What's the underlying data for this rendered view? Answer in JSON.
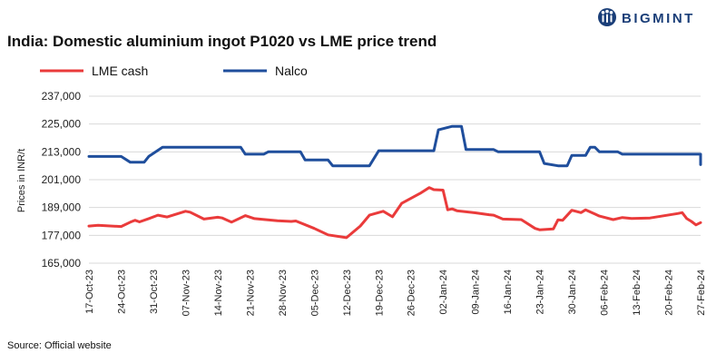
{
  "brand": {
    "name": "BIGMINT",
    "logo_icon": "bigmint-logo-icon",
    "color": "#1a3e78"
  },
  "footer": {
    "source": "Source: Official website"
  },
  "chart_data": {
    "type": "line",
    "title": "India: Domestic aluminium ingot P1020 vs LME price trend",
    "ylabel": "Prices in INR/t",
    "xlabel": "",
    "ylim": [
      165000,
      237000
    ],
    "yticks": [
      "165,000",
      "177,000",
      "189,000",
      "201,000",
      "213,000",
      "225,000",
      "237,000"
    ],
    "ytick_values": [
      165000,
      177000,
      189000,
      201000,
      213000,
      225000,
      237000
    ],
    "xlim": [
      "2023-10-17",
      "2024-02-27"
    ],
    "xticks": [
      "17-Oct-23",
      "24-Oct-23",
      "31-Oct-23",
      "07-Nov-23",
      "14-Nov-23",
      "21-Nov-23",
      "28-Nov-23",
      "05-Dec-23",
      "12-Dec-23",
      "19-Dec-23",
      "26-Dec-23",
      "02-Jan-24",
      "09-Jan-24",
      "16-Jan-24",
      "23-Jan-24",
      "30-Jan-24",
      "06-Feb-24",
      "13-Feb-24",
      "20-Feb-24",
      "27-Feb-24"
    ],
    "xtick_dates": [
      "2023-10-17",
      "2023-10-24",
      "2023-10-31",
      "2023-11-07",
      "2023-11-14",
      "2023-11-21",
      "2023-11-28",
      "2023-12-05",
      "2023-12-12",
      "2023-12-19",
      "2023-12-26",
      "2024-01-02",
      "2024-01-09",
      "2024-01-16",
      "2024-01-23",
      "2024-01-30",
      "2024-02-06",
      "2024-02-13",
      "2024-02-20",
      "2024-02-27"
    ],
    "grid": {
      "y": true,
      "x": false
    },
    "legend": "top-left",
    "series": [
      {
        "name": "LME cash",
        "color": "#ea3b3b",
        "points": [
          [
            "2023-10-17",
            181000
          ],
          [
            "2023-10-19",
            181300
          ],
          [
            "2023-10-24",
            180800
          ],
          [
            "2023-10-26",
            182700
          ],
          [
            "2023-10-27",
            183500
          ],
          [
            "2023-10-28",
            182800
          ],
          [
            "2023-10-30",
            184200
          ],
          [
            "2023-11-01",
            185700
          ],
          [
            "2023-11-03",
            184900
          ],
          [
            "2023-11-07",
            187400
          ],
          [
            "2023-11-08",
            187000
          ],
          [
            "2023-11-11",
            184000
          ],
          [
            "2023-11-14",
            184800
          ],
          [
            "2023-11-15",
            184500
          ],
          [
            "2023-11-17",
            182700
          ],
          [
            "2023-11-20",
            185500
          ],
          [
            "2023-11-22",
            184200
          ],
          [
            "2023-11-27",
            183300
          ],
          [
            "2023-11-30",
            183000
          ],
          [
            "2023-12-01",
            183200
          ],
          [
            "2023-12-05",
            180000
          ],
          [
            "2023-12-08",
            177200
          ],
          [
            "2023-12-12",
            176000
          ],
          [
            "2023-12-15",
            181000
          ],
          [
            "2023-12-17",
            185700
          ],
          [
            "2023-12-20",
            187400
          ],
          [
            "2023-12-22",
            185000
          ],
          [
            "2023-12-24",
            190800
          ],
          [
            "2023-12-28",
            195100
          ],
          [
            "2023-12-30",
            197600
          ],
          [
            "2023-12-31",
            196700
          ],
          [
            "2024-01-02",
            196500
          ],
          [
            "2024-01-03",
            188000
          ],
          [
            "2024-01-04",
            188400
          ],
          [
            "2024-01-05",
            187600
          ],
          [
            "2024-01-09",
            186700
          ],
          [
            "2024-01-12",
            185900
          ],
          [
            "2024-01-13",
            185700
          ],
          [
            "2024-01-15",
            184000
          ],
          [
            "2024-01-19",
            183800
          ],
          [
            "2024-01-22",
            180000
          ],
          [
            "2024-01-23",
            179400
          ],
          [
            "2024-01-26",
            179800
          ],
          [
            "2024-01-27",
            183700
          ],
          [
            "2024-01-28",
            183500
          ],
          [
            "2024-01-30",
            187800
          ],
          [
            "2024-02-01",
            186800
          ],
          [
            "2024-02-02",
            188000
          ],
          [
            "2024-02-04",
            186200
          ],
          [
            "2024-02-05",
            185300
          ],
          [
            "2024-02-08",
            183800
          ],
          [
            "2024-02-10",
            184700
          ],
          [
            "2024-02-12",
            184300
          ],
          [
            "2024-02-16",
            184500
          ],
          [
            "2024-02-22",
            186400
          ],
          [
            "2024-02-23",
            186800
          ],
          [
            "2024-02-24",
            184200
          ],
          [
            "2024-02-25",
            183000
          ],
          [
            "2024-02-26",
            181500
          ],
          [
            "2024-03-02",
            182500
          ]
        ]
      },
      {
        "name": "Nalco",
        "color": "#1f4e9c",
        "points": [
          [
            "2023-10-17",
            211000
          ],
          [
            "2023-10-24",
            211000
          ],
          [
            "2023-10-26",
            208500
          ],
          [
            "2023-10-29",
            208500
          ],
          [
            "2023-10-30",
            211000
          ],
          [
            "2023-11-02",
            215000
          ],
          [
            "2023-11-19",
            215000
          ],
          [
            "2023-11-20",
            212000
          ],
          [
            "2023-11-24",
            212000
          ],
          [
            "2023-11-25",
            213000
          ],
          [
            "2023-12-02",
            213000
          ],
          [
            "2023-12-03",
            209500
          ],
          [
            "2023-12-08",
            209500
          ],
          [
            "2023-12-09",
            207000
          ],
          [
            "2023-12-17",
            207000
          ],
          [
            "2023-12-19",
            213500
          ],
          [
            "2023-12-31",
            213500
          ],
          [
            "2024-01-01",
            222500
          ],
          [
            "2024-01-04",
            224000
          ],
          [
            "2024-01-06",
            224000
          ],
          [
            "2024-01-07",
            214000
          ],
          [
            "2024-01-13",
            214000
          ],
          [
            "2024-01-14",
            213000
          ],
          [
            "2024-01-23",
            213000
          ],
          [
            "2024-01-24",
            208000
          ],
          [
            "2024-01-27",
            207000
          ],
          [
            "2024-01-29",
            207000
          ],
          [
            "2024-01-30",
            211500
          ],
          [
            "2024-02-02",
            211500
          ],
          [
            "2024-02-03",
            215000
          ],
          [
            "2024-02-04",
            215000
          ],
          [
            "2024-02-05",
            213000
          ],
          [
            "2024-02-09",
            213000
          ],
          [
            "2024-02-10",
            212000
          ],
          [
            "2024-02-29",
            212000
          ],
          [
            "2024-03-02",
            207500
          ]
        ]
      }
    ]
  }
}
